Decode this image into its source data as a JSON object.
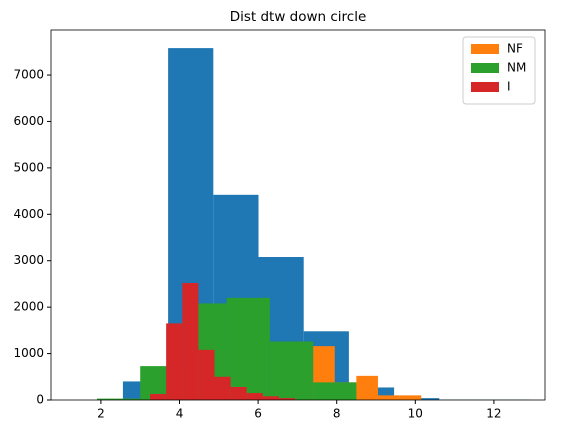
{
  "chart_data": {
    "type": "histogram",
    "title": "Dist dtw down circle",
    "series": [
      {
        "color": "#1f77b4",
        "bins": [
          2.56,
          3.71,
          4.86,
          6.01,
          7.16,
          8.31,
          9.46,
          10.61,
          11.76,
          12.91
        ],
        "values": [
          400,
          7580,
          4420,
          3080,
          1480,
          270,
          40,
          5,
          5
        ]
      },
      {
        "name": "NF",
        "color": "#ff7f0e",
        "bins": [
          7.4,
          7.95,
          8.5,
          9.05,
          9.6,
          10.15
        ],
        "values": [
          1160,
          380,
          520,
          100,
          100
        ]
      },
      {
        "name": "NM",
        "color": "#2ca02c",
        "bins": [
          1.9,
          3.0,
          4.1,
          5.2,
          6.3,
          7.4,
          8.5
        ],
        "values": [
          30,
          730,
          2080,
          2200,
          1260,
          380
        ]
      },
      {
        "name": "I",
        "color": "#d62728",
        "bins": [
          3.25,
          3.66,
          4.07,
          4.48,
          4.89,
          5.3,
          5.71,
          6.12,
          6.53,
          6.94
        ],
        "values": [
          130,
          1650,
          2520,
          1080,
          500,
          280,
          150,
          80,
          40
        ]
      }
    ],
    "xlim": [
      0.73,
      13.3
    ],
    "xticks": [
      2,
      4,
      6,
      8,
      10,
      12
    ],
    "ylim": [
      0,
      7970
    ],
    "yticks": [
      0,
      1000,
      2000,
      3000,
      4000,
      5000,
      6000,
      7000
    ],
    "legend": "upper right"
  }
}
